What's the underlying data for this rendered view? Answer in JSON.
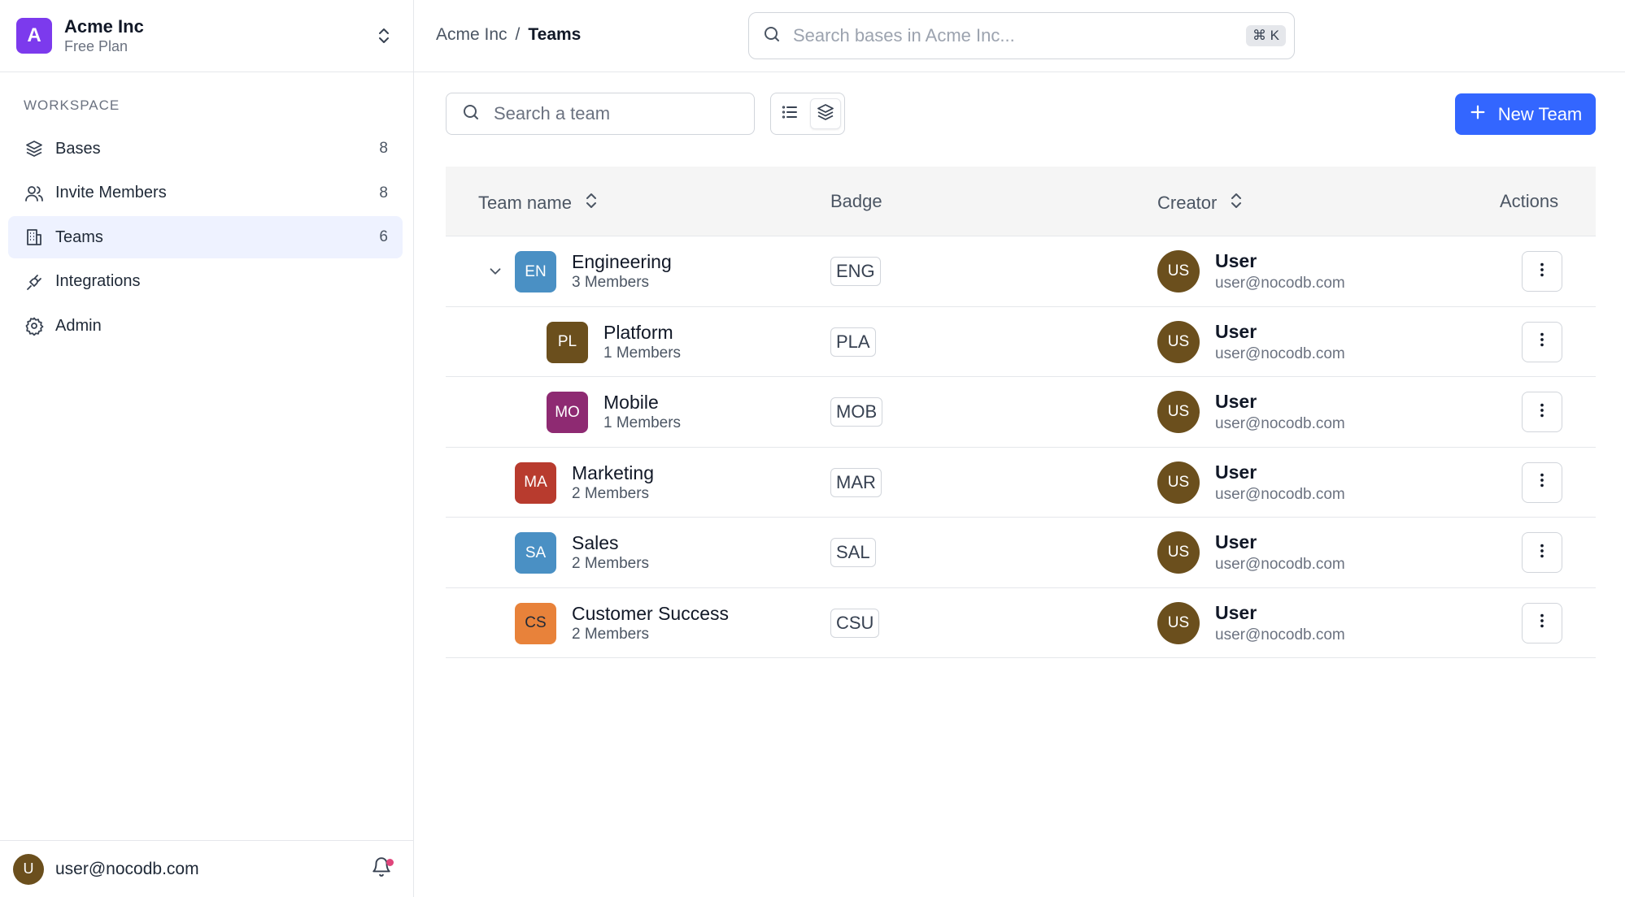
{
  "workspace": {
    "initial": "A",
    "name": "Acme Inc",
    "plan": "Free Plan"
  },
  "sidebar": {
    "section_label": "WORKSPACE",
    "items": [
      {
        "label": "Bases",
        "count": "8",
        "icon": "database-icon"
      },
      {
        "label": "Invite Members",
        "count": "8",
        "icon": "users-icon"
      },
      {
        "label": "Teams",
        "count": "6",
        "icon": "building-icon",
        "active": true
      },
      {
        "label": "Integrations",
        "count": "",
        "icon": "plug-icon"
      },
      {
        "label": "Admin",
        "count": "",
        "icon": "gear-icon"
      }
    ]
  },
  "user": {
    "initial": "U",
    "email": "user@nocodb.com"
  },
  "breadcrumb": {
    "parent": "Acme Inc",
    "separator": "/",
    "current": "Teams"
  },
  "global_search": {
    "placeholder": "Search bases in Acme Inc...",
    "shortcut": "⌘ K"
  },
  "toolbar": {
    "search_placeholder": "Search a team",
    "new_team_label": "New Team"
  },
  "table": {
    "headers": {
      "team_name": "Team name",
      "badge": "Badge",
      "creator": "Creator",
      "actions": "Actions"
    },
    "rows": [
      {
        "initials": "EN",
        "name": "Engineering",
        "members": "3 Members",
        "badge": "ENG",
        "color": "#4a90c4",
        "level": 0,
        "expanded": true,
        "creator_initials": "US",
        "creator_name": "User",
        "creator_email": "user@nocodb.com"
      },
      {
        "initials": "PL",
        "name": "Platform",
        "members": "1 Members",
        "badge": "PLA",
        "color": "#6b4f1d",
        "level": 1,
        "creator_initials": "US",
        "creator_name": "User",
        "creator_email": "user@nocodb.com"
      },
      {
        "initials": "MO",
        "name": "Mobile",
        "members": "1 Members",
        "badge": "MOB",
        "color": "#8e2a72",
        "level": 1,
        "creator_initials": "US",
        "creator_name": "User",
        "creator_email": "user@nocodb.com"
      },
      {
        "initials": "MA",
        "name": "Marketing",
        "members": "2 Members",
        "badge": "MAR",
        "color": "#b83b2e",
        "level": 0,
        "creator_initials": "US",
        "creator_name": "User",
        "creator_email": "user@nocodb.com"
      },
      {
        "initials": "SA",
        "name": "Sales",
        "members": "2 Members",
        "badge": "SAL",
        "color": "#4a90c4",
        "level": 0,
        "creator_initials": "US",
        "creator_name": "User",
        "creator_email": "user@nocodb.com"
      },
      {
        "initials": "CS",
        "name": "Customer Success",
        "members": "2 Members",
        "badge": "CSU",
        "color": "#e8823a",
        "level": 0,
        "creator_initials": "US",
        "creator_name": "User",
        "creator_email": "user@nocodb.com"
      }
    ]
  },
  "colors": {
    "accent": "#3366ff",
    "active_nav_bg": "#eef2ff",
    "workspace_logo": "#7c3aed",
    "creator_avatar": "#6b4f1d",
    "notification_dot": "#e0457b"
  }
}
